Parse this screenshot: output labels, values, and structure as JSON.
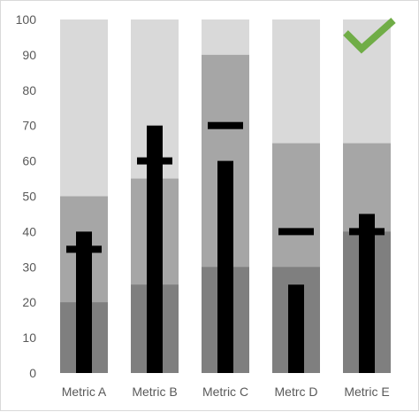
{
  "chart_data": {
    "type": "bar",
    "subtype": "bullet",
    "categories": [
      "Metric A",
      "Metric B",
      "Metric C",
      "Metrc D",
      "Metric E"
    ],
    "ylim": [
      0,
      100
    ],
    "yticks": [
      0,
      10,
      20,
      30,
      40,
      50,
      60,
      70,
      80,
      90,
      100
    ],
    "grid": false,
    "legend": "none",
    "series": [
      {
        "role": "range-poor",
        "values": [
          20,
          25,
          30,
          30,
          40
        ],
        "color": "#7f7f7f"
      },
      {
        "role": "range-satisfactory",
        "values": [
          50,
          55,
          90,
          65,
          65
        ],
        "color": "#a6a6a6"
      },
      {
        "role": "range-good",
        "values": [
          100,
          100,
          100,
          100,
          100
        ],
        "color": "#d9d9d9"
      },
      {
        "role": "actual",
        "values": [
          40,
          70,
          60,
          25,
          45
        ],
        "color": "#000000"
      },
      {
        "role": "target",
        "values": [
          35,
          60,
          70,
          40,
          40
        ],
        "color": "#000000"
      }
    ],
    "annotations": [
      {
        "type": "checkmark-icon",
        "category": "Metric E",
        "color": "#70ad47"
      }
    ]
  }
}
